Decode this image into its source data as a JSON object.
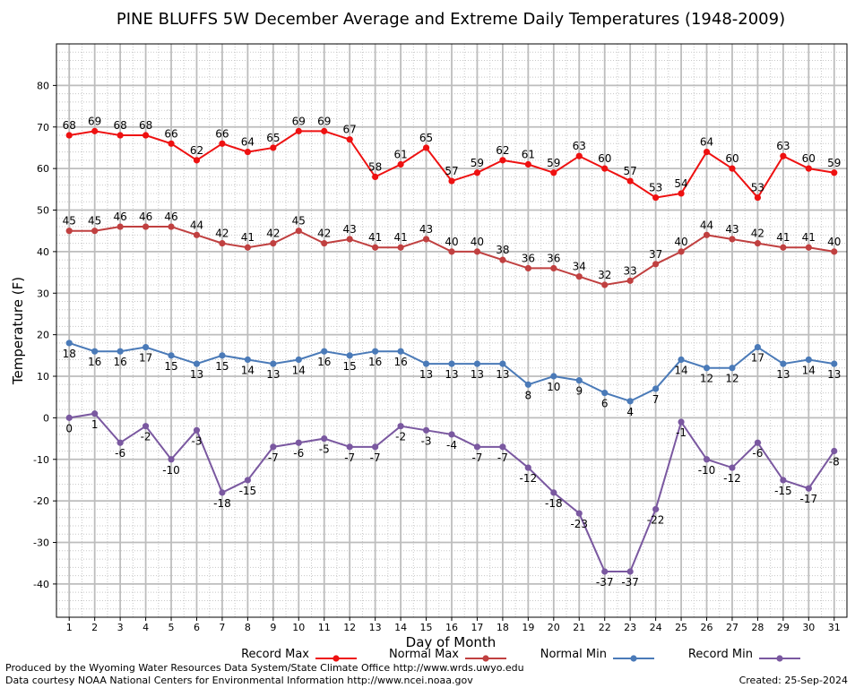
{
  "chart_data": {
    "type": "line",
    "title": "PINE BLUFFS 5W December Average and Extreme Daily Temperatures (1948-2009)",
    "xlabel": "Day of Month",
    "ylabel": "Temperature (F)",
    "x": [
      1,
      2,
      3,
      4,
      5,
      6,
      7,
      8,
      9,
      10,
      11,
      12,
      13,
      14,
      15,
      16,
      17,
      18,
      19,
      20,
      21,
      22,
      23,
      24,
      25,
      26,
      27,
      28,
      29,
      30,
      31
    ],
    "xlim": [
      0.5,
      31.5
    ],
    "ylim": [
      -48,
      90
    ],
    "yticks": [
      -40,
      -30,
      -20,
      -10,
      0,
      10,
      20,
      30,
      40,
      50,
      60,
      70,
      80
    ],
    "grid": true,
    "legend_position": "bottom",
    "series": [
      {
        "name": "Record Max",
        "color": "#ee1111",
        "values": [
          68,
          69,
          68,
          68,
          66,
          62,
          66,
          64,
          65,
          69,
          69,
          67,
          58,
          61,
          65,
          57,
          59,
          62,
          61,
          59,
          63,
          60,
          57,
          53,
          54,
          64,
          60,
          53,
          63,
          60,
          59
        ]
      },
      {
        "name": "Normal Max",
        "color": "#c04040",
        "values": [
          45,
          45,
          46,
          46,
          46,
          44,
          42,
          41,
          42,
          45,
          42,
          43,
          41,
          41,
          43,
          40,
          40,
          38,
          36,
          36,
          34,
          32,
          33,
          37,
          40,
          44,
          43,
          42,
          41,
          41,
          40
        ]
      },
      {
        "name": "Normal Min",
        "color": "#4a7ab8",
        "values": [
          18,
          16,
          16,
          17,
          15,
          13,
          15,
          14,
          13,
          14,
          16,
          15,
          16,
          16,
          13,
          13,
          13,
          13,
          8,
          10,
          9,
          6,
          4,
          7,
          14,
          12,
          12,
          17,
          13,
          14,
          13
        ]
      },
      {
        "name": "Record Min",
        "color": "#7a58a0",
        "values": [
          0,
          1,
          -6,
          -2,
          -10,
          -3,
          -18,
          -15,
          -7,
          -6,
          -5,
          -7,
          -7,
          -2,
          -3,
          -4,
          -7,
          -7,
          -12,
          -18,
          -23,
          -37,
          -37,
          -22,
          -1,
          -10,
          -12,
          -6,
          -15,
          -17,
          -8
        ]
      }
    ]
  },
  "footer": {
    "credit_line1": "Produced by the Wyoming Water Resources Data System/State Climate Office http://www.wrds.uwyo.edu",
    "credit_line2": "Data courtesy NOAA National Centers for Environmental Information http://www.ncei.noaa.gov",
    "created": "Created:  25-Sep-2024"
  }
}
